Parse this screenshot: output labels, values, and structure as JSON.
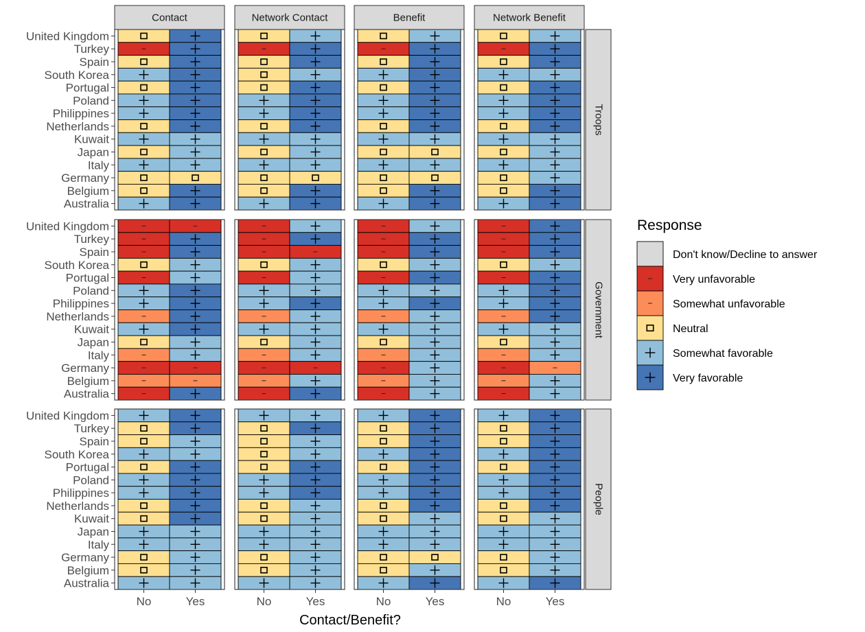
{
  "chart_data": {
    "type": "heatmap",
    "title": "",
    "xlabel": "Contact/Benefit?",
    "ylabel": "",
    "x_categories": [
      "No",
      "Yes"
    ],
    "y_categories": [
      "United Kingdom",
      "Turkey",
      "Spain",
      "South Korea",
      "Portugal",
      "Poland",
      "Philippines",
      "Netherlands",
      "Kuwait",
      "Japan",
      "Italy",
      "Germany",
      "Belgium",
      "Australia"
    ],
    "facet_columns": [
      "Contact",
      "Network Contact",
      "Benefit",
      "Network Benefit"
    ],
    "facet_rows": [
      "Troops",
      "Government",
      "People"
    ],
    "legend": {
      "title": "Response",
      "placement": "right",
      "levels": [
        {
          "code": "DK",
          "label": "Don't know/Decline to answer",
          "color": "#d9d9d9",
          "symbol": ""
        },
        {
          "code": "VU",
          "label": "Very unfavorable",
          "color": "#d73027",
          "symbol": "minus"
        },
        {
          "code": "SU",
          "label": "Somewhat unfavorable",
          "color": "#fc8d59",
          "symbol": "minus"
        },
        {
          "code": "N",
          "label": "Neutral",
          "color": "#fee090",
          "symbol": "square"
        },
        {
          "code": "SF",
          "label": "Somewhat favorable",
          "color": "#91bfdb",
          "symbol": "plus"
        },
        {
          "code": "VF",
          "label": "Very favorable",
          "color": "#4575b4",
          "symbol": "plus"
        }
      ]
    },
    "panels": {
      "Troops": {
        "Contact": [
          [
            "N",
            "VF"
          ],
          [
            "VU",
            "VF"
          ],
          [
            "N",
            "VF"
          ],
          [
            "SF",
            "VF"
          ],
          [
            "N",
            "VF"
          ],
          [
            "SF",
            "VF"
          ],
          [
            "SF",
            "VF"
          ],
          [
            "N",
            "VF"
          ],
          [
            "SF",
            "SF"
          ],
          [
            "N",
            "SF"
          ],
          [
            "SF",
            "SF"
          ],
          [
            "N",
            "N"
          ],
          [
            "N",
            "VF"
          ],
          [
            "SF",
            "VF"
          ]
        ],
        "Network Contact": [
          [
            "N",
            "SF"
          ],
          [
            "VU",
            "VF"
          ],
          [
            "N",
            "VF"
          ],
          [
            "N",
            "SF"
          ],
          [
            "N",
            "VF"
          ],
          [
            "SF",
            "VF"
          ],
          [
            "SF",
            "VF"
          ],
          [
            "N",
            "VF"
          ],
          [
            "SF",
            "SF"
          ],
          [
            "N",
            "SF"
          ],
          [
            "SF",
            "SF"
          ],
          [
            "N",
            "N"
          ],
          [
            "N",
            "VF"
          ],
          [
            "SF",
            "VF"
          ]
        ],
        "Benefit": [
          [
            "N",
            "SF"
          ],
          [
            "VU",
            "VF"
          ],
          [
            "N",
            "VF"
          ],
          [
            "SF",
            "VF"
          ],
          [
            "N",
            "VF"
          ],
          [
            "SF",
            "VF"
          ],
          [
            "SF",
            "VF"
          ],
          [
            "N",
            "VF"
          ],
          [
            "SF",
            "SF"
          ],
          [
            "N",
            "N"
          ],
          [
            "SF",
            "SF"
          ],
          [
            "N",
            "N"
          ],
          [
            "N",
            "VF"
          ],
          [
            "SF",
            "VF"
          ]
        ],
        "Network Benefit": [
          [
            "N",
            "SF"
          ],
          [
            "VU",
            "VF"
          ],
          [
            "N",
            "VF"
          ],
          [
            "SF",
            "SF"
          ],
          [
            "N",
            "VF"
          ],
          [
            "SF",
            "VF"
          ],
          [
            "SF",
            "VF"
          ],
          [
            "N",
            "VF"
          ],
          [
            "SF",
            "SF"
          ],
          [
            "N",
            "SF"
          ],
          [
            "SF",
            "SF"
          ],
          [
            "N",
            "SF"
          ],
          [
            "N",
            "VF"
          ],
          [
            "SF",
            "VF"
          ]
        ]
      },
      "Government": {
        "Contact": [
          [
            "VU",
            "VU"
          ],
          [
            "VU",
            "VF"
          ],
          [
            "VU",
            "VF"
          ],
          [
            "N",
            "SF"
          ],
          [
            "VU",
            "SF"
          ],
          [
            "SF",
            "VF"
          ],
          [
            "SF",
            "VF"
          ],
          [
            "SU",
            "VF"
          ],
          [
            "SF",
            "VF"
          ],
          [
            "N",
            "SF"
          ],
          [
            "SU",
            "SF"
          ],
          [
            "VU",
            "VU"
          ],
          [
            "SU",
            "SU"
          ],
          [
            "VU",
            "VF"
          ]
        ],
        "Network Contact": [
          [
            "VU",
            "SF"
          ],
          [
            "VU",
            "VF"
          ],
          [
            "VU",
            "VU"
          ],
          [
            "N",
            "SF"
          ],
          [
            "VU",
            "SF"
          ],
          [
            "SF",
            "SF"
          ],
          [
            "SF",
            "VF"
          ],
          [
            "SU",
            "SF"
          ],
          [
            "SF",
            "SF"
          ],
          [
            "N",
            "SF"
          ],
          [
            "SU",
            "SF"
          ],
          [
            "VU",
            "VU"
          ],
          [
            "SU",
            "SF"
          ],
          [
            "VU",
            "VF"
          ]
        ],
        "Benefit": [
          [
            "VU",
            "SF"
          ],
          [
            "VU",
            "VF"
          ],
          [
            "VU",
            "VF"
          ],
          [
            "N",
            "SF"
          ],
          [
            "VU",
            "VF"
          ],
          [
            "SF",
            "SF"
          ],
          [
            "SF",
            "VF"
          ],
          [
            "SU",
            "SF"
          ],
          [
            "SF",
            "SF"
          ],
          [
            "N",
            "SF"
          ],
          [
            "SU",
            "SF"
          ],
          [
            "VU",
            "SF"
          ],
          [
            "SU",
            "SF"
          ],
          [
            "VU",
            "SF"
          ]
        ],
        "Network Benefit": [
          [
            "VU",
            "VF"
          ],
          [
            "VU",
            "VF"
          ],
          [
            "VU",
            "VF"
          ],
          [
            "N",
            "SF"
          ],
          [
            "VU",
            "VF"
          ],
          [
            "SF",
            "VF"
          ],
          [
            "SF",
            "VF"
          ],
          [
            "SU",
            "VF"
          ],
          [
            "SF",
            "SF"
          ],
          [
            "N",
            "SF"
          ],
          [
            "SU",
            "SF"
          ],
          [
            "VU",
            "SU"
          ],
          [
            "SU",
            "SF"
          ],
          [
            "VU",
            "SF"
          ]
        ]
      },
      "People": {
        "Contact": [
          [
            "SF",
            "VF"
          ],
          [
            "N",
            "VF"
          ],
          [
            "N",
            "SF"
          ],
          [
            "SF",
            "SF"
          ],
          [
            "N",
            "VF"
          ],
          [
            "SF",
            "VF"
          ],
          [
            "SF",
            "VF"
          ],
          [
            "N",
            "VF"
          ],
          [
            "N",
            "VF"
          ],
          [
            "SF",
            "SF"
          ],
          [
            "SF",
            "SF"
          ],
          [
            "N",
            "SF"
          ],
          [
            "N",
            "SF"
          ],
          [
            "SF",
            "SF"
          ]
        ],
        "Network Contact": [
          [
            "SF",
            "SF"
          ],
          [
            "N",
            "VF"
          ],
          [
            "N",
            "SF"
          ],
          [
            "N",
            "SF"
          ],
          [
            "N",
            "VF"
          ],
          [
            "SF",
            "VF"
          ],
          [
            "SF",
            "VF"
          ],
          [
            "N",
            "SF"
          ],
          [
            "N",
            "SF"
          ],
          [
            "SF",
            "SF"
          ],
          [
            "SF",
            "SF"
          ],
          [
            "N",
            "SF"
          ],
          [
            "N",
            "SF"
          ],
          [
            "SF",
            "SF"
          ]
        ],
        "Benefit": [
          [
            "SF",
            "VF"
          ],
          [
            "N",
            "VF"
          ],
          [
            "N",
            "VF"
          ],
          [
            "SF",
            "VF"
          ],
          [
            "N",
            "VF"
          ],
          [
            "SF",
            "VF"
          ],
          [
            "SF",
            "VF"
          ],
          [
            "N",
            "VF"
          ],
          [
            "N",
            "SF"
          ],
          [
            "SF",
            "SF"
          ],
          [
            "SF",
            "SF"
          ],
          [
            "N",
            "N"
          ],
          [
            "N",
            "SF"
          ],
          [
            "SF",
            "VF"
          ]
        ],
        "Network Benefit": [
          [
            "SF",
            "VF"
          ],
          [
            "N",
            "VF"
          ],
          [
            "N",
            "VF"
          ],
          [
            "SF",
            "VF"
          ],
          [
            "N",
            "VF"
          ],
          [
            "SF",
            "VF"
          ],
          [
            "SF",
            "VF"
          ],
          [
            "N",
            "VF"
          ],
          [
            "N",
            "SF"
          ],
          [
            "SF",
            "SF"
          ],
          [
            "SF",
            "SF"
          ],
          [
            "N",
            "SF"
          ],
          [
            "N",
            "SF"
          ],
          [
            "SF",
            "VF"
          ]
        ]
      }
    }
  }
}
